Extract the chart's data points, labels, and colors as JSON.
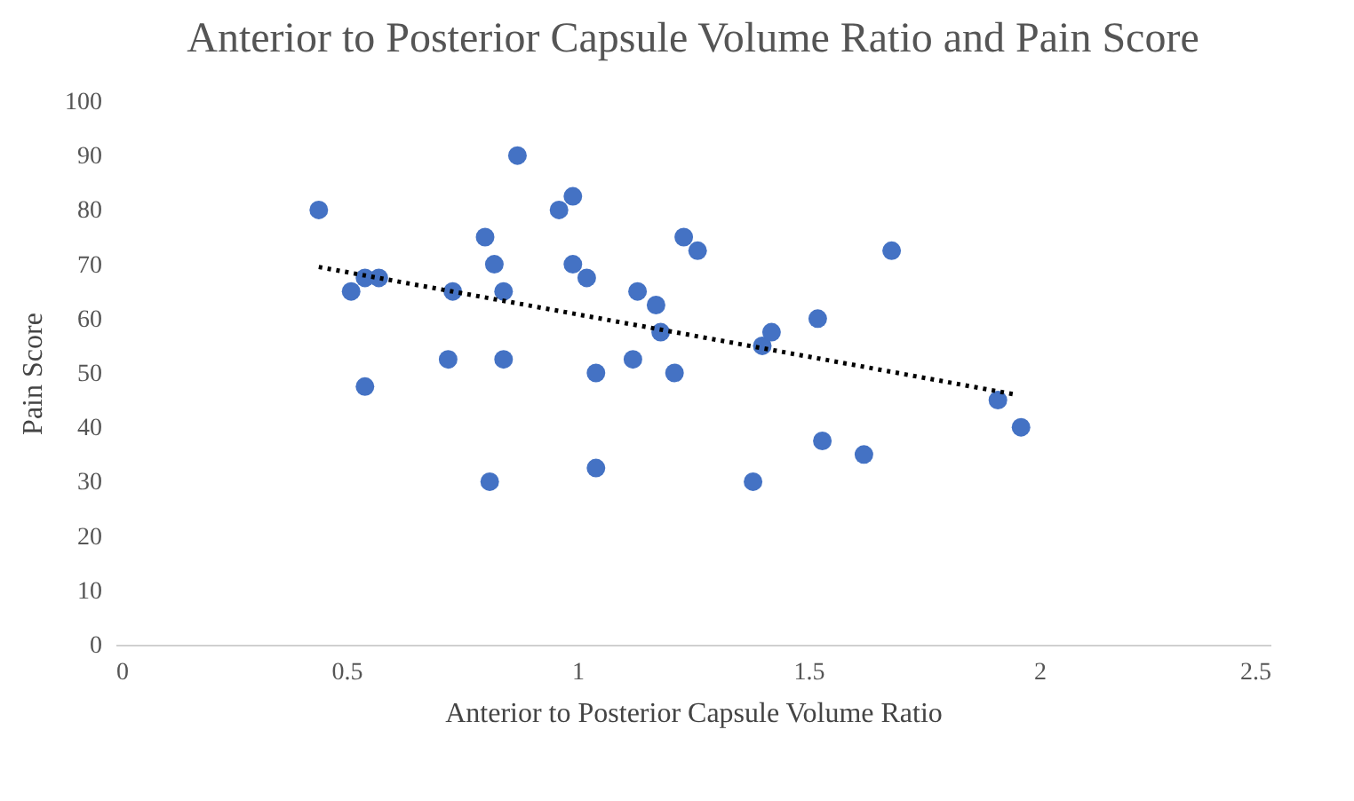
{
  "chart_data": {
    "type": "scatter",
    "title": "Anterior to Posterior Capsule Volume Ratio and Pain Score",
    "xlabel": "Anterior to Posterior Capsule Volume Ratio",
    "ylabel": "Pain Score",
    "xlim": [
      0,
      2.5
    ],
    "xticks": [
      0,
      0.5,
      1,
      1.5,
      2,
      2.5
    ],
    "ylim": [
      0,
      100
    ],
    "yticks": [
      0,
      10,
      20,
      30,
      40,
      50,
      60,
      70,
      80,
      90,
      100
    ],
    "grid": false,
    "series": [
      {
        "marker": "circle",
        "color": "#4472c4",
        "x": [
          0.44,
          0.51,
          0.54,
          0.54,
          0.57,
          0.72,
          0.73,
          0.8,
          0.81,
          0.82,
          0.84,
          0.84,
          0.87,
          0.96,
          0.99,
          0.99,
          1.02,
          1.04,
          1.04,
          1.12,
          1.13,
          1.17,
          1.18,
          1.21,
          1.23,
          1.26,
          1.38,
          1.4,
          1.42,
          1.52,
          1.53,
          1.62,
          1.68,
          1.91,
          1.96
        ],
        "values": [
          80,
          65,
          67.5,
          47.5,
          67.5,
          52.5,
          65,
          75,
          30,
          70,
          65,
          52.5,
          90,
          80,
          82.5,
          70,
          67.5,
          50,
          32.5,
          52.5,
          65,
          62.5,
          57.5,
          50,
          75,
          72.5,
          30,
          55,
          57.5,
          60,
          37.5,
          35,
          72.5,
          45,
          40
        ]
      },
      {
        "type": "line",
        "marker": "none",
        "color": "#000000",
        "line_style": "dotted",
        "x": [
          0.44,
          1.95
        ],
        "values": [
          69.5,
          46
        ]
      }
    ]
  }
}
